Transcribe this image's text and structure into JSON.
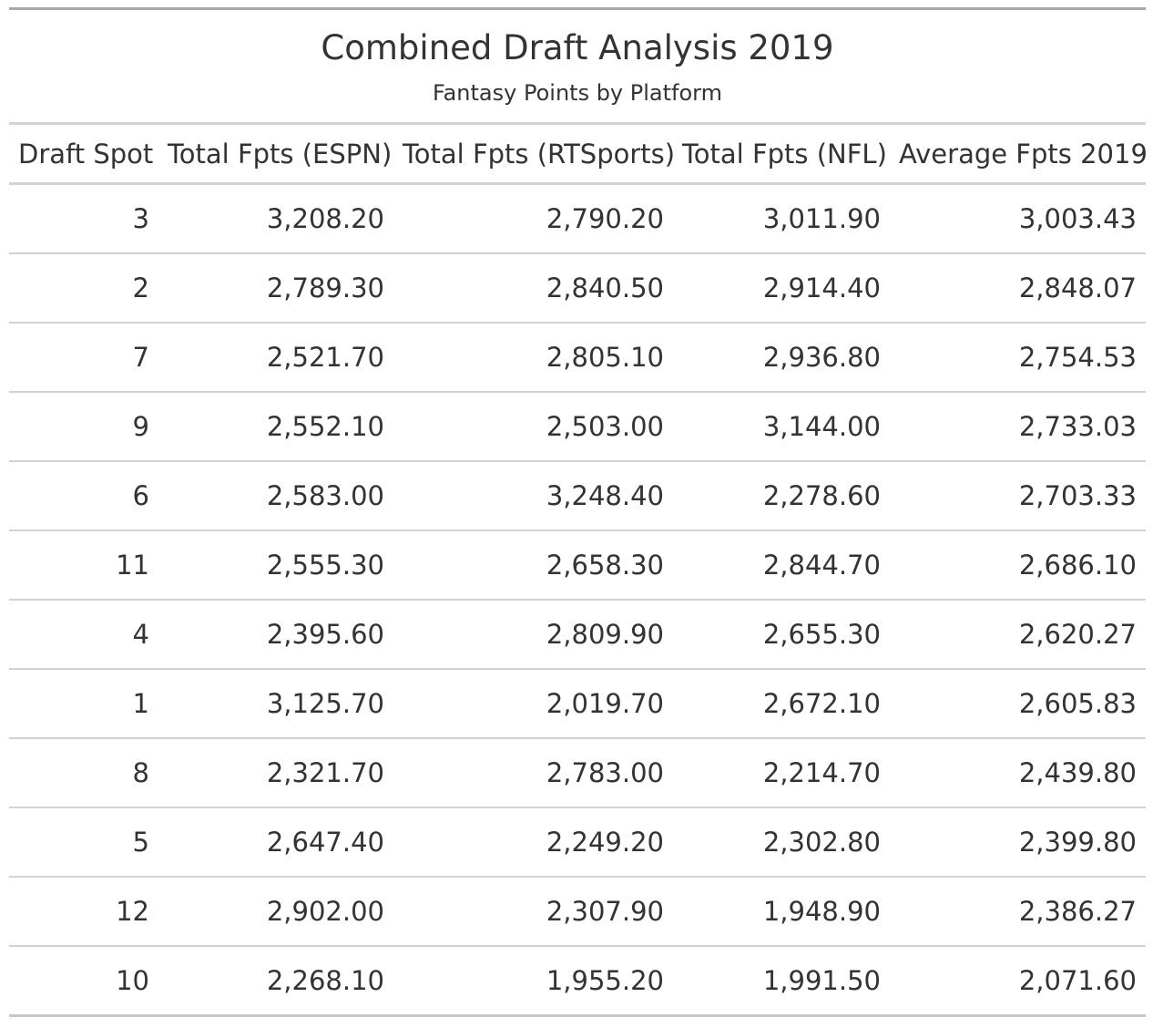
{
  "table": {
    "title": "Combined Draft Analysis 2019",
    "subtitle": "Fantasy Points by Platform",
    "columns": [
      "Draft Spot",
      "Total Fpts (ESPN)",
      "Total Fpts (RTSports)",
      "Total Fpts (NFL)",
      "Average Fpts 2019"
    ],
    "rows": [
      [
        "3",
        "3,208.20",
        "2,790.20",
        "3,011.90",
        "3,003.43"
      ],
      [
        "2",
        "2,789.30",
        "2,840.50",
        "2,914.40",
        "2,848.07"
      ],
      [
        "7",
        "2,521.70",
        "2,805.10",
        "2,936.80",
        "2,754.53"
      ],
      [
        "9",
        "2,552.10",
        "2,503.00",
        "3,144.00",
        "2,733.03"
      ],
      [
        "6",
        "2,583.00",
        "3,248.40",
        "2,278.60",
        "2,703.33"
      ],
      [
        "11",
        "2,555.30",
        "2,658.30",
        "2,844.70",
        "2,686.10"
      ],
      [
        "4",
        "2,395.60",
        "2,809.90",
        "2,655.30",
        "2,620.27"
      ],
      [
        "1",
        "3,125.70",
        "2,019.70",
        "2,672.10",
        "2,605.83"
      ],
      [
        "8",
        "2,321.70",
        "2,783.00",
        "2,214.70",
        "2,439.80"
      ],
      [
        "5",
        "2,647.40",
        "2,249.20",
        "2,302.80",
        "2,399.80"
      ],
      [
        "12",
        "2,902.00",
        "2,307.90",
        "1,948.90",
        "2,386.27"
      ],
      [
        "10",
        "2,268.10",
        "1,955.20",
        "1,991.50",
        "2,071.60"
      ]
    ]
  }
}
